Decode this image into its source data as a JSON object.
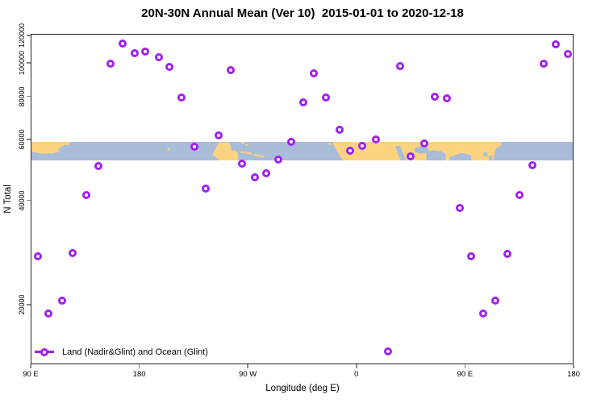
{
  "title": "20N-30N Annual Mean (Ver 10)  2015-01-01 to 2020-12-18",
  "colors": {
    "point": "#A020F0",
    "land": "#FCD37E",
    "ocean": "#A9BCD8",
    "axis": "#262626",
    "tick": "#888888"
  },
  "legend": {
    "label": "Land (Nadir&Glint) and Ocean (Glint)"
  },
  "map_band": {
    "meaning": "world coastline strip for 20N-30N, land vs ocean",
    "value_band_n": [
      52000,
      59000
    ],
    "land_segments_deg_axis": [
      [
        90,
        122
      ],
      [
        204,
        206
      ],
      [
        241,
        262
      ],
      [
        265,
        285
      ],
      [
        340,
        482
      ]
    ]
  },
  "chart_data": {
    "type": "scatter",
    "title": "20N-30N Annual Mean (Ver 10)  2015-01-01 to 2020-12-18",
    "xlabel": "Longitude (deg E)",
    "ylabel": "N Total",
    "grid": false,
    "legend_position": "bottom-left inside plot",
    "x_axis": {
      "min": 90,
      "max": 540,
      "ticks": [
        90,
        180,
        270,
        360,
        450,
        540
      ],
      "tick_labels": [
        "90 E",
        "180",
        "90 W",
        "0",
        "90 E",
        "180"
      ],
      "note": "longitude wraps eastward: 90E-180-90W-0-90E-180; first 90 deg repeats at end"
    },
    "y_axis": {
      "scale": "log10",
      "min": 13500,
      "max": 121500,
      "ticks": [
        20000,
        40000,
        60000,
        80000,
        100000,
        120000
      ],
      "tick_labels": [
        "20000",
        "40000",
        "60000",
        "80000",
        "100000",
        "120000"
      ]
    },
    "series": [
      {
        "name": "Land (Nadir&Glint) and Ocean (Glint)",
        "marker": "open-circle",
        "points": [
          {
            "lon": 96,
            "n": 27600
          },
          {
            "lon": 105,
            "n": 18800
          },
          {
            "lon": 116,
            "n": 20500
          },
          {
            "lon": 125,
            "n": 28200
          },
          {
            "lon": 136,
            "n": 41400
          },
          {
            "lon": 146,
            "n": 50300
          },
          {
            "lon": 156,
            "n": 99500
          },
          {
            "lon": 166,
            "n": 113600
          },
          {
            "lon": 176,
            "n": 106800
          },
          {
            "lon": 185,
            "n": 107800
          },
          {
            "lon": 196,
            "n": 103700
          },
          {
            "lon": 205,
            "n": 97500
          },
          {
            "lon": 215,
            "n": 79500
          },
          {
            "lon": 226,
            "n": 57300
          },
          {
            "lon": 235,
            "n": 43300
          },
          {
            "lon": 246,
            "n": 61600
          },
          {
            "lon": 256,
            "n": 95300
          },
          {
            "lon": 265,
            "n": 51200
          },
          {
            "lon": 276,
            "n": 46600
          },
          {
            "lon": 285,
            "n": 47900
          },
          {
            "lon": 295,
            "n": 52500
          },
          {
            "lon": 306,
            "n": 59100
          },
          {
            "lon": 316,
            "n": 76800
          },
          {
            "lon": 325,
            "n": 93100
          },
          {
            "lon": 335,
            "n": 79400
          },
          {
            "lon": 346,
            "n": 64200
          },
          {
            "lon": 355,
            "n": 55800
          },
          {
            "lon": 365,
            "n": 57500
          },
          {
            "lon": 376,
            "n": 60200
          },
          {
            "lon": 386,
            "n": 14600
          },
          {
            "lon": 396,
            "n": 98000
          },
          {
            "lon": 405,
            "n": 53700
          },
          {
            "lon": 416,
            "n": 58400
          },
          {
            "lon": 425,
            "n": 79700
          },
          {
            "lon": 435,
            "n": 79000
          },
          {
            "lon": 446,
            "n": 38000
          },
          {
            "lon": 455,
            "n": 27600
          },
          {
            "lon": 465,
            "n": 18800
          },
          {
            "lon": 475,
            "n": 20500
          },
          {
            "lon": 485,
            "n": 28000
          },
          {
            "lon": 495,
            "n": 41500
          },
          {
            "lon": 506,
            "n": 50500
          },
          {
            "lon": 515,
            "n": 99500
          },
          {
            "lon": 525,
            "n": 113400
          },
          {
            "lon": 535,
            "n": 106000
          }
        ]
      }
    ]
  }
}
